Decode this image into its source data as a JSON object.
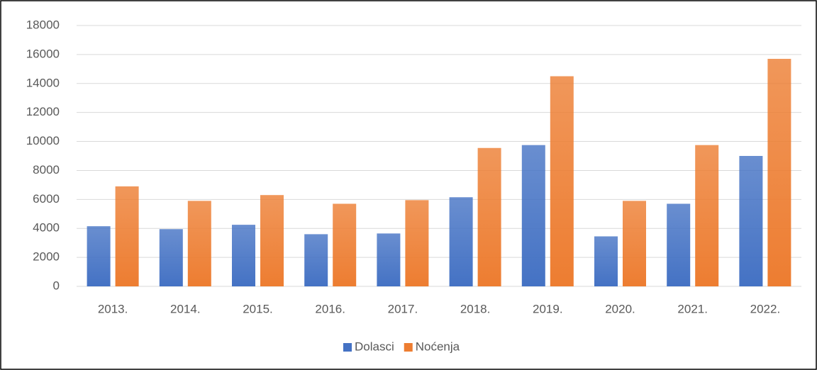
{
  "chart_data": {
    "type": "bar",
    "categories": [
      "2013.",
      "2014.",
      "2015.",
      "2016.",
      "2017.",
      "2018.",
      "2019.",
      "2020.",
      "2021.",
      "2022."
    ],
    "series": [
      {
        "name": "Dolasci",
        "color": "#4472c4",
        "values": [
          4150,
          3950,
          4250,
          3600,
          3650,
          6150,
          9750,
          3450,
          5700,
          9000
        ]
      },
      {
        "name": "Noćenja",
        "color": "#ed7d31",
        "values": [
          6900,
          5900,
          6300,
          5700,
          5950,
          9550,
          14500,
          5900,
          9750,
          15700
        ]
      }
    ],
    "ylim": [
      0,
      18000
    ],
    "yticks": [
      0,
      2000,
      4000,
      6000,
      8000,
      10000,
      12000,
      14000,
      16000,
      18000
    ],
    "grid": true,
    "legend": "bottom"
  }
}
